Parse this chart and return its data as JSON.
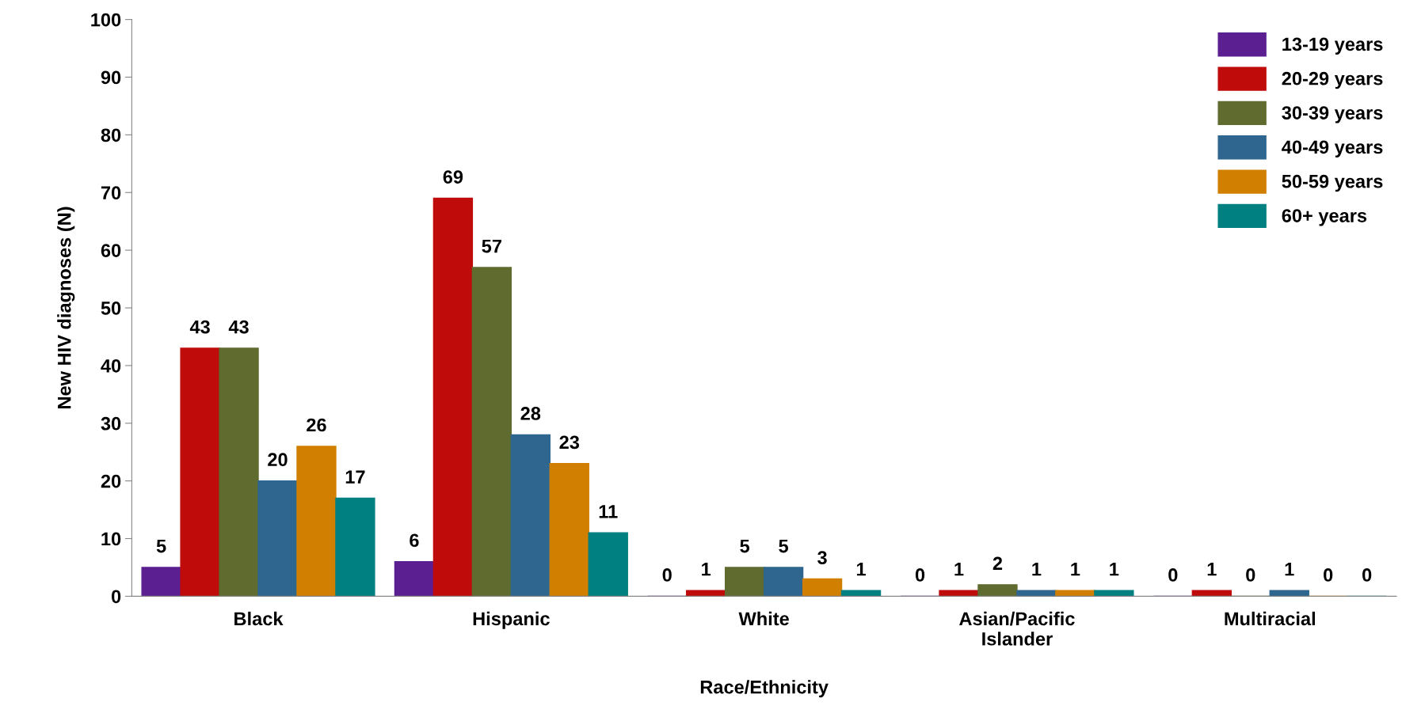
{
  "chart_data": {
    "type": "bar",
    "xlabel": "Race/Ethnicity",
    "ylabel": "New HIV diagnoses (N)",
    "categories": [
      "Black",
      "Hispanic",
      "White",
      "Asian/Pacific Islander",
      "Multiracial"
    ],
    "series": [
      {
        "name": "13-19 years",
        "color": "#5b1f91",
        "values": [
          5,
          6,
          0,
          0,
          0
        ]
      },
      {
        "name": "20-29 years",
        "color": "#c00b0b",
        "values": [
          43,
          69,
          1,
          1,
          1
        ]
      },
      {
        "name": "30-39 years",
        "color": "#5f6b2f",
        "values": [
          43,
          57,
          5,
          2,
          0
        ]
      },
      {
        "name": "40-49 years",
        "color": "#2e668f",
        "values": [
          20,
          28,
          5,
          1,
          1
        ]
      },
      {
        "name": "50-59 years",
        "color": "#d17f00",
        "values": [
          26,
          23,
          3,
          1,
          0
        ]
      },
      {
        "name": "60+ years",
        "color": "#008080",
        "values": [
          17,
          11,
          1,
          1,
          0
        ]
      }
    ],
    "ylim": [
      0,
      100
    ],
    "yticks": [
      0,
      10,
      20,
      30,
      40,
      50,
      60,
      70,
      80,
      90,
      100
    ],
    "data_labels": true,
    "grid": false,
    "legend": "top right"
  }
}
